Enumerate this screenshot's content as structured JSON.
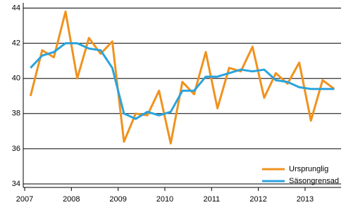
{
  "chart_data": {
    "type": "line",
    "x": [
      2007.125,
      2007.375,
      2007.625,
      2007.875,
      2008.125,
      2008.375,
      2008.625,
      2008.875,
      2009.125,
      2009.375,
      2009.625,
      2009.875,
      2010.125,
      2010.375,
      2010.625,
      2010.875,
      2011.125,
      2011.375,
      2011.625,
      2011.875,
      2012.125,
      2012.375,
      2012.625,
      2012.875,
      2013.125,
      2013.375,
      2013.625
    ],
    "series": [
      {
        "name": "Ursprunglig",
        "color": "#f0921e",
        "values": [
          39.0,
          41.6,
          41.2,
          43.8,
          40.0,
          42.3,
          41.4,
          42.1,
          36.4,
          38.0,
          37.9,
          39.3,
          36.3,
          39.8,
          39.1,
          41.5,
          38.3,
          40.6,
          40.4,
          41.8,
          38.9,
          40.3,
          39.7,
          40.9,
          37.6,
          39.9,
          39.4
        ]
      },
      {
        "name": "Säsongrensad",
        "color": "#2aa3dc",
        "values": [
          40.6,
          41.3,
          41.5,
          42.0,
          42.0,
          41.7,
          41.6,
          40.6,
          38.0,
          37.7,
          38.1,
          37.9,
          38.1,
          39.3,
          39.3,
          40.1,
          40.1,
          40.3,
          40.5,
          40.4,
          40.5,
          39.9,
          39.8,
          39.5,
          39.4,
          39.4,
          39.4
        ]
      }
    ],
    "xlim": [
      2006.97,
      2013.77
    ],
    "xticks": [
      2007,
      2008,
      2009,
      2010,
      2011,
      2012,
      2013
    ],
    "ylim": [
      33.8,
      44.3
    ],
    "yticks": [
      34,
      36,
      38,
      40,
      42,
      44
    ],
    "grid": true,
    "legend": "lower-right"
  }
}
